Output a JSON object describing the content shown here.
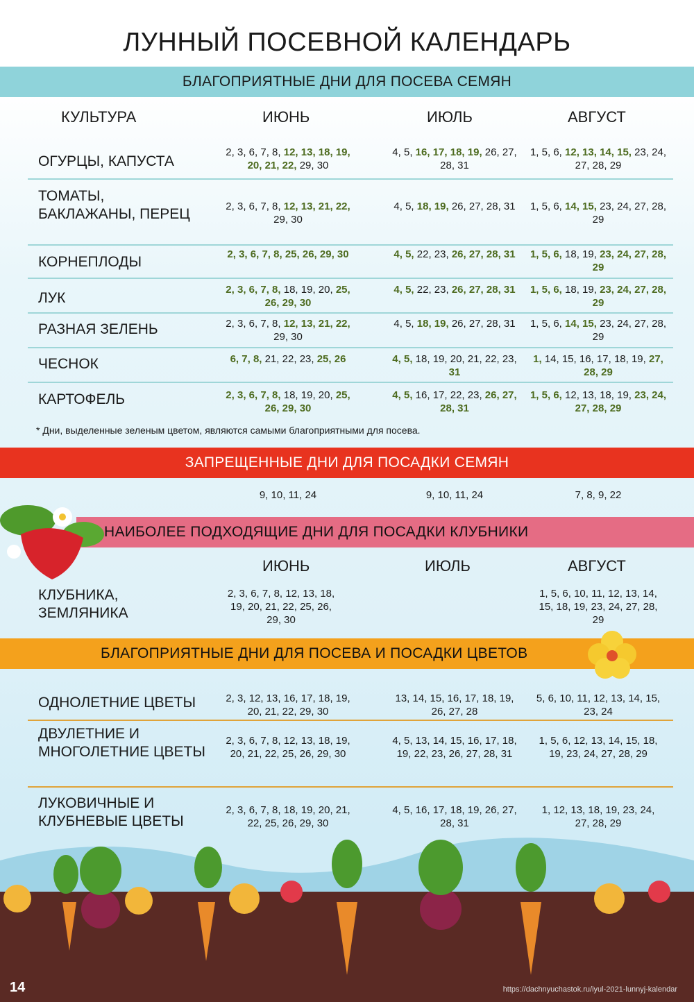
{
  "title": "ЛУННЫЙ ПОСЕВНОЙ КАЛЕНДАРЬ",
  "sowing": {
    "band": "БЛАГОПРИЯТНЫЕ ДНИ ДЛЯ ПОСЕВА СЕМЯН",
    "headers": [
      "КУЛЬТУРА",
      "ИЮНЬ",
      "ИЮЛЬ",
      "АВГУСТ"
    ],
    "rows": [
      {
        "crop": "ОГУРЦЫ, КАПУСТА",
        "cells": [
          {
            "days": [
              2,
              3,
              6,
              7,
              8,
              12,
              13,
              18,
              19,
              20,
              21,
              22,
              29,
              30
            ],
            "green": [
              12,
              13,
              18,
              19,
              20,
              21,
              22
            ]
          },
          {
            "days": [
              4,
              5,
              16,
              17,
              18,
              19,
              26,
              27,
              28,
              31
            ],
            "green": [
              16,
              17,
              18,
              19
            ]
          },
          {
            "days": [
              1,
              5,
              6,
              12,
              13,
              14,
              15,
              23,
              24,
              27,
              28,
              29
            ],
            "green": [
              12,
              13,
              14,
              15
            ]
          }
        ]
      },
      {
        "crop": "ТОМАТЫ, БАКЛАЖАНЫ, ПЕРЕЦ",
        "cells": [
          {
            "days": [
              2,
              3,
              6,
              7,
              8,
              12,
              13,
              21,
              22,
              29,
              30
            ],
            "green": [
              12,
              13,
              21,
              22
            ]
          },
          {
            "days": [
              4,
              5,
              18,
              19,
              26,
              27,
              28,
              31
            ],
            "green": [
              18,
              19
            ]
          },
          {
            "days": [
              1,
              5,
              6,
              14,
              15,
              23,
              24,
              27,
              28,
              29
            ],
            "green": [
              14,
              15
            ]
          }
        ]
      },
      {
        "crop": "КОРНЕПЛОДЫ",
        "cells": [
          {
            "days": [
              2,
              3,
              6,
              7,
              8,
              25,
              26,
              29,
              30
            ],
            "green": [
              2,
              3,
              6,
              7,
              8,
              25,
              26,
              29,
              30
            ]
          },
          {
            "days": [
              4,
              5,
              22,
              23,
              26,
              27,
              28,
              31
            ],
            "green": [
              4,
              5,
              26,
              27,
              28,
              31
            ]
          },
          {
            "days": [
              1,
              5,
              6,
              18,
              19,
              23,
              24,
              27,
              28,
              29
            ],
            "green": [
              1,
              5,
              6,
              23,
              24,
              27,
              28,
              29
            ]
          }
        ]
      },
      {
        "crop": "ЛУК",
        "cells": [
          {
            "days": [
              2,
              3,
              6,
              7,
              8,
              18,
              19,
              20,
              25,
              26,
              29,
              30
            ],
            "green": [
              2,
              3,
              6,
              7,
              8,
              25,
              26,
              29,
              30
            ]
          },
          {
            "days": [
              4,
              5,
              22,
              23,
              26,
              27,
              28,
              31
            ],
            "green": [
              4,
              5,
              26,
              27,
              28,
              31
            ]
          },
          {
            "days": [
              1,
              5,
              6,
              18,
              19,
              23,
              24,
              27,
              28,
              29
            ],
            "green": [
              1,
              5,
              6,
              23,
              24,
              27,
              28,
              29
            ]
          }
        ]
      },
      {
        "crop": "РАЗНАЯ ЗЕЛЕНЬ",
        "cells": [
          {
            "days": [
              2,
              3,
              6,
              7,
              8,
              12,
              13,
              21,
              22,
              29,
              30
            ],
            "green": [
              12,
              13,
              21,
              22
            ]
          },
          {
            "days": [
              4,
              5,
              18,
              19,
              26,
              27,
              28,
              31
            ],
            "green": [
              18,
              19
            ]
          },
          {
            "days": [
              1,
              5,
              6,
              14,
              15,
              23,
              24,
              27,
              28,
              29
            ],
            "green": [
              14,
              15
            ]
          }
        ]
      },
      {
        "crop": "ЧЕСНОК",
        "cells": [
          {
            "days": [
              6,
              7,
              8,
              21,
              22,
              23,
              25,
              26
            ],
            "green": [
              6,
              7,
              8,
              25,
              26
            ]
          },
          {
            "days": [
              4,
              5,
              18,
              19,
              20,
              21,
              22,
              23,
              31
            ],
            "green": [
              4,
              5,
              31
            ]
          },
          {
            "days": [
              1,
              14,
              15,
              16,
              17,
              18,
              19,
              27,
              28,
              29
            ],
            "green": [
              1,
              27,
              28,
              29
            ]
          }
        ]
      },
      {
        "crop": "КАРТОФЕЛЬ",
        "cells": [
          {
            "days": [
              2,
              3,
              6,
              7,
              8,
              18,
              19,
              20,
              25,
              26,
              29,
              30
            ],
            "green": [
              2,
              3,
              6,
              7,
              8,
              25,
              26,
              29,
              30
            ]
          },
          {
            "days": [
              4,
              5,
              16,
              17,
              22,
              23,
              26,
              27,
              28,
              31
            ],
            "green": [
              4,
              5,
              26,
              27,
              28,
              31
            ]
          },
          {
            "days": [
              1,
              5,
              6,
              12,
              13,
              18,
              19,
              23,
              24,
              27,
              28,
              29
            ],
            "green": [
              1,
              5,
              6,
              23,
              24,
              27,
              28,
              29
            ]
          }
        ]
      }
    ],
    "note": "* Дни, выделенные зеленым цветом, являются самыми благоприятными для посева."
  },
  "forbidden": {
    "band": "ЗАПРЕЩЕННЫЕ ДНИ ДЛЯ ПОСАДКИ СЕМЯН",
    "values": [
      "9, 10, 11, 24",
      "9, 10, 11, 24",
      "7, 8, 9, 22"
    ]
  },
  "strawberry": {
    "band": "НАИБОЛЕЕ ПОДХОДЯЩИЕ ДНИ ДЛЯ ПОСАДКИ КЛУБНИКИ",
    "headers": [
      "ИЮНЬ",
      "ИЮЛЬ",
      "АВГУСТ"
    ],
    "crop": "КЛУБНИКА, ЗЕМЛЯНИКА",
    "values": [
      "2, 3, 6, 7, 8, 12, 13, 18, 19, 20, 21, 22, 25, 26, 29, 30",
      "",
      "1, 5, 6, 10, 11, 12, 13, 14, 15, 18, 19, 23, 24, 27, 28, 29"
    ]
  },
  "flowers": {
    "band": "БЛАГОПРИЯТНЫЕ ДНИ ДЛЯ ПОСЕВА И ПОСАДКИ ЦВЕТОВ",
    "rows": [
      {
        "crop": "ОДНОЛЕТНИЕ ЦВЕТЫ",
        "values": [
          "2, 3, 12, 13, 16, 17, 18, 19, 20, 21, 22, 29, 30",
          "13, 14, 15, 16, 17, 18, 19, 26, 27, 28",
          "5, 6, 10, 11, 12, 13, 14, 15, 23, 24"
        ]
      },
      {
        "crop": "ДВУЛЕТНИЕ И МНОГОЛЕТНИЕ ЦВЕТЫ",
        "values": [
          "2, 3, 6, 7, 8, 12, 13, 18, 19, 20, 21, 22, 25, 26, 29, 30",
          "4, 5, 13, 14, 15, 16, 17, 18, 19, 22, 23, 26, 27, 28, 31",
          "1, 5, 6, 12, 13, 14, 15, 18, 19, 23, 24, 27, 28, 29"
        ]
      },
      {
        "crop": "ЛУКОВИЧНЫЕ И КЛУБНЕВЫЕ ЦВЕТЫ",
        "values": [
          "2, 3, 6, 7, 8, 18, 19, 20, 21, 22, 25, 26, 29, 30",
          "4, 5, 16, 17, 18, 19, 26, 27, 28, 31",
          "1, 12, 13, 18, 19, 23, 24, 27, 28, 29"
        ]
      }
    ]
  },
  "footer": {
    "page": "14",
    "url": "https://dachnyuchastok.ru/iyul-2021-lunnyj-kalendar"
  },
  "colors": {
    "green_day": "#4d6b1f",
    "blue_band": "#8fd3da",
    "red_band": "#e8331f",
    "pink_band": "#e56c84",
    "orange_band": "#f4a11c"
  }
}
